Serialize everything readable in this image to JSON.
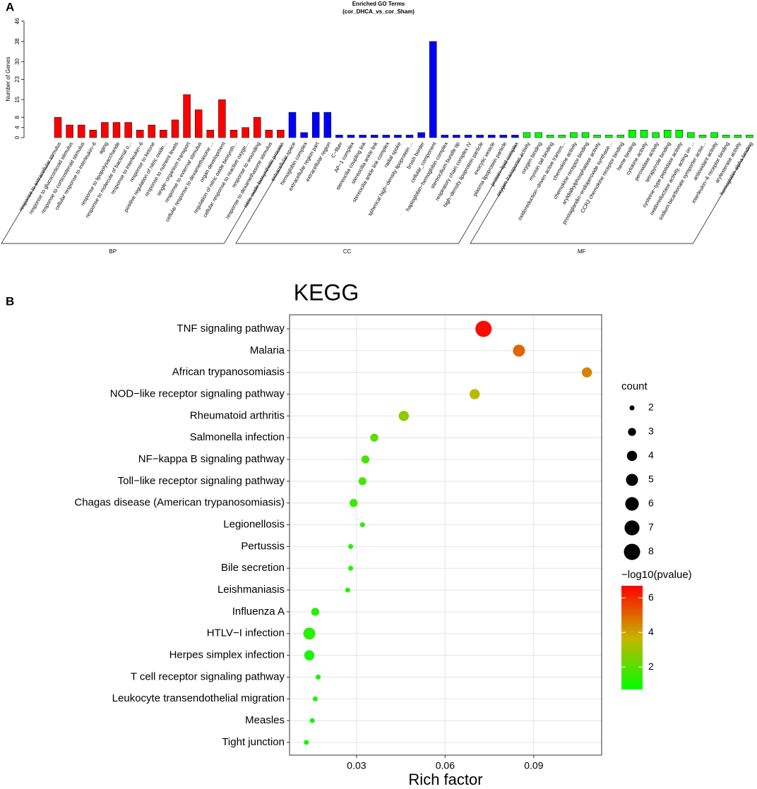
{
  "chart_data": [
    {
      "type": "bar",
      "panel": "A",
      "title": "Enriched GO Terms",
      "subtitle": "(cor_DHCA_vs_cor_Sham)",
      "ylabel": "Number of Genes",
      "ylim": [
        0,
        46
      ],
      "yticks": [
        0,
        4,
        8,
        15,
        23,
        30,
        38,
        46
      ],
      "groups": [
        {
          "name": "BP",
          "color": "#ff0000",
          "categories": [
            "response to extracellular stimulus",
            "response to glucocorticoid stimulus",
            "response to corticosteroid stimulus",
            "cellular response to interleukin−6",
            "aging",
            "response to lipopolysaccharide",
            "response to molecule of bacterial o...",
            "response to interleukin−6",
            "response to ketone",
            "positive regulation of nitric oxide...",
            "response to nutrient levels",
            "single−organism transport",
            "response to external stimulus",
            "cellular response to dexamethasone ...",
            "organ development",
            "regulation of nitric oxide biosynth...",
            "cellular response to reactive oxyge...",
            "response to wounding",
            "response to dexamethasone stimulus",
            "nitric oxide biosynthetic process"
          ],
          "values": [
            8,
            5,
            5,
            3,
            6,
            6,
            6,
            3,
            5,
            3,
            7,
            17,
            11,
            3,
            15,
            3,
            4,
            8,
            3,
            3
          ]
        },
        {
          "name": "CC",
          "color": "#0000ff",
          "categories": [
            "extracellular space",
            "hemoglobin complex",
            "extracellular region part",
            "extracellular region",
            "C−fiber",
            "AP−1 complex",
            "stereocilia coupling link",
            "stereocilia ankle link",
            "stereocilia ankle link complex",
            "radial spoke",
            "spherical high−density lipoprotein ...",
            "brush border",
            "cellular_component",
            "haptoglobin−hemoglobin complex",
            "stereocilium bundle tip",
            "respiratory chain complex IV",
            "high−density lipoprotein particle",
            "exocytic vesicle",
            "plasma lipoprotein particle",
            "protein−lipid complex"
          ],
          "values": [
            10,
            2,
            10,
            10,
            1,
            1,
            1,
            1,
            1,
            1,
            1,
            2,
            38,
            1,
            1,
            1,
            1,
            1,
            1,
            1
          ]
        },
        {
          "name": "MF",
          "color": "#00ff00",
          "categories": [
            "oxygen transporter activity",
            "oxygen binding",
            "myosin tail binding",
            "oxidoreduction−driven active transm...",
            "chemokine activity",
            "chemokine receptor binding",
            "aryldialkylphosphatase activity",
            "prostaglandin−endoperoxide synthase...",
            "CCR2 chemokine receptor binding",
            "heme binding",
            "cytokine activity",
            "peroxidase activity",
            "tetrapyrrole binding",
            "cysteine−type peptidase activity",
            "oxidoreductase activity, acting on ...",
            "sodium:bicarbonate symporter activi...",
            "antioxidant activity",
            "interleukin−6 receptor binding",
            "arylesterase activity",
            "hemoglobin alpha binding"
          ],
          "values": [
            2,
            2,
            1,
            1,
            2,
            2,
            1,
            1,
            1,
            3,
            3,
            2,
            3,
            3,
            2,
            1,
            2,
            1,
            1,
            1
          ]
        }
      ]
    },
    {
      "type": "scatter",
      "panel": "B",
      "title": "KEGG",
      "xlabel": "Rich factor",
      "xlim": [
        0.0073,
        0.113
      ],
      "xticks": [
        0.03,
        0.06,
        0.09
      ],
      "grid": true,
      "categories": [
        "TNF signaling pathway",
        "Malaria",
        "African trypanosomiasis",
        "NOD−like receptor signaling pathway",
        "Rheumatoid arthritis",
        "Salmonella infection",
        "NF−kappa B signaling pathway",
        "Toll−like receptor signaling pathway",
        "Chagas disease (American trypanosomiasis)",
        "Legionellosis",
        "Pertussis",
        "Bile secretion",
        "Leishmaniasis",
        "Influenza A",
        "HTLV−I infection",
        "Herpes simplex infection",
        "T cell receptor signaling pathway",
        "Leukocyte transendothelial migration",
        "Measles",
        "Tight junction"
      ],
      "x": [
        0.073,
        0.085,
        0.108,
        0.07,
        0.046,
        0.036,
        0.033,
        0.032,
        0.029,
        0.032,
        0.028,
        0.028,
        0.027,
        0.016,
        0.014,
        0.014,
        0.017,
        0.016,
        0.015,
        0.013
      ],
      "size": [
        8,
        5,
        4,
        4,
        4,
        3,
        3,
        3,
        3,
        2,
        2,
        2,
        2,
        3,
        5,
        4,
        2,
        2,
        2,
        2
      ],
      "color_values": [
        6.5,
        5.0,
        4.5,
        3.5,
        2.8,
        2.0,
        1.8,
        1.8,
        1.6,
        1.3,
        1.2,
        1.2,
        1.1,
        1.2,
        1.3,
        1.1,
        1.0,
        1.0,
        0.9,
        0.9
      ],
      "size_legend": {
        "title": "count",
        "values": [
          2,
          3,
          4,
          5,
          6,
          7,
          8
        ]
      },
      "color_legend": {
        "title": "−log10(pvalue)",
        "lim": [
          0.7,
          6.7
        ],
        "ticks": [
          2,
          4,
          6
        ],
        "colors": [
          "#00ff00",
          "#c8b400",
          "#ff0000"
        ]
      }
    }
  ]
}
